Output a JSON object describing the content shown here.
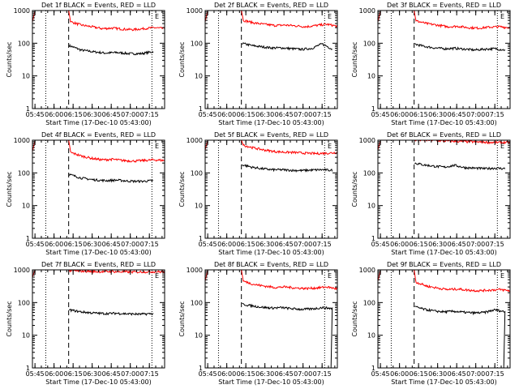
{
  "chart_data": [
    {
      "type": "line",
      "title": "Det 1f BLACK = Events, RED = LLD",
      "xlabel": "Start Time (17-Dec-10 05:43:00)",
      "ylabel": "Counts/sec",
      "yscale": "log",
      "ylim": [
        1,
        1000
      ],
      "xticks": [
        "05:45",
        "06:00",
        "06:15",
        "06:30",
        "06:45",
        "07:00",
        "07:15"
      ],
      "xlim_min": [
        0,
        100
      ],
      "yticks": [
        "1",
        "10",
        "100",
        "1000"
      ],
      "markers": [
        {
          "x": 10.5,
          "style": "dotted"
        },
        {
          "x": 28.5,
          "style": "dashed"
        },
        {
          "x": 94,
          "style": "dotted"
        }
      ],
      "corner_label": "E",
      "series": [
        {
          "name": "BLACK = Events",
          "color": "#000000",
          "start": 28.5,
          "end": 95,
          "base": [
            85,
            62,
            55,
            50,
            52,
            48,
            48,
            55
          ]
        },
        {
          "name": "RED = LLD",
          "color": "#ff0000",
          "start": 0,
          "end": 104,
          "spike": [
            [
              0,
              450
            ],
            [
              2,
              1000
            ],
            [
              28.5,
              1000
            ],
            [
              29.5,
              600
            ],
            [
              30,
              450
            ]
          ],
          "base": [
            450,
            360,
            320,
            280,
            290,
            270,
            260,
            280,
            300,
            280
          ]
        }
      ]
    },
    {
      "type": "line",
      "title": "Det 2f BLACK = Events, RED = LLD",
      "xlabel": "Start Time (17-Dec-10 05:43:00)",
      "ylabel": "Counts/sec",
      "yscale": "log",
      "ylim": [
        1,
        1000
      ],
      "xticks": [
        "05:45",
        "06:00",
        "06:15",
        "06:30",
        "06:45",
        "07:00",
        "07:15"
      ],
      "xlim_min": [
        0,
        100
      ],
      "yticks": [
        "1",
        "10",
        "100",
        "1000"
      ],
      "markers": [
        {
          "x": 10.5,
          "style": "dotted"
        },
        {
          "x": 28.5,
          "style": "dashed"
        },
        {
          "x": 94,
          "style": "dotted"
        }
      ],
      "corner_label": "E",
      "series": [
        {
          "name": "BLACK = Events",
          "color": "#000000",
          "start": 28.5,
          "end": 100,
          "base": [
            100,
            85,
            78,
            72,
            72,
            68,
            65,
            70,
            95,
            65
          ]
        },
        {
          "name": "RED = LLD",
          "color": "#ff0000",
          "start": 0,
          "end": 104,
          "spike": [
            [
              0,
              450
            ],
            [
              2,
              1000
            ],
            [
              28.5,
              1000
            ],
            [
              29.5,
              650
            ],
            [
              30,
              500
            ]
          ],
          "base": [
            500,
            420,
            380,
            350,
            360,
            340,
            320,
            350,
            380,
            330
          ]
        }
      ]
    },
    {
      "type": "line",
      "title": "Det 3f BLACK = Events, RED = LLD",
      "xlabel": "Start Time (17-Dec-10 05:43:00)",
      "ylabel": "Counts/sec",
      "yscale": "log",
      "ylim": [
        1,
        1000
      ],
      "xticks": [
        "05:45",
        "06:00",
        "06:15",
        "06:30",
        "06:45",
        "07:00",
        "07:15"
      ],
      "xlim_min": [
        0,
        100
      ],
      "yticks": [
        "1",
        "10",
        "100",
        "1000"
      ],
      "markers": [
        {
          "x": 10.5,
          "style": "dotted"
        },
        {
          "x": 28.5,
          "style": "dashed"
        },
        {
          "x": 94,
          "style": "dotted"
        }
      ],
      "corner_label": "E",
      "series": [
        {
          "name": "BLACK = Events",
          "color": "#000000",
          "start": 28.5,
          "end": 100,
          "base": [
            95,
            80,
            72,
            68,
            70,
            66,
            62,
            66,
            68,
            62
          ]
        },
        {
          "name": "RED = LLD",
          "color": "#ff0000",
          "start": 0,
          "end": 104,
          "spike": [
            [
              0,
              450
            ],
            [
              2,
              1000
            ],
            [
              28.5,
              1000
            ],
            [
              29.5,
              600
            ],
            [
              30,
              480
            ]
          ],
          "base": [
            480,
            400,
            360,
            320,
            330,
            300,
            290,
            310,
            320,
            300
          ]
        }
      ]
    },
    {
      "type": "line",
      "title": "Det 4f BLACK = Events, RED = LLD",
      "xlabel": "Start Time (17-Dec-10 05:43:00)",
      "ylabel": "Counts/sec",
      "yscale": "log",
      "ylim": [
        1,
        1000
      ],
      "xticks": [
        "05:45",
        "06:00",
        "06:15",
        "06:30",
        "06:45",
        "07:00",
        "07:15"
      ],
      "xlim_min": [
        0,
        100
      ],
      "yticks": [
        "1",
        "10",
        "100",
        "1000"
      ],
      "markers": [
        {
          "x": 10.5,
          "style": "dotted"
        },
        {
          "x": 28.5,
          "style": "dashed"
        },
        {
          "x": 94,
          "style": "dotted"
        }
      ],
      "corner_label": "E",
      "series": [
        {
          "name": "BLACK = Events",
          "color": "#000000",
          "start": 28.5,
          "end": 95,
          "base": [
            90,
            70,
            62,
            58,
            60,
            56,
            55,
            58
          ]
        },
        {
          "name": "RED = LLD",
          "color": "#ff0000",
          "start": 0,
          "end": 104,
          "spike": [
            [
              0,
              450
            ],
            [
              2,
              1000
            ],
            [
              28.5,
              1000
            ],
            [
              29.5,
              600
            ],
            [
              30,
              450
            ]
          ],
          "base": [
            420,
            330,
            280,
            250,
            260,
            240,
            230,
            240,
            250,
            240
          ]
        }
      ]
    },
    {
      "type": "line",
      "title": "Det 5f BLACK = Events, RED = LLD",
      "xlabel": "Start Time (17-Dec-10 05:43:00)",
      "ylabel": "Counts/sec",
      "yscale": "log",
      "ylim": [
        1,
        1000
      ],
      "xticks": [
        "05:45",
        "06:00",
        "06:15",
        "06:30",
        "06:45",
        "07:00",
        "07:15"
      ],
      "xlim_min": [
        0,
        100
      ],
      "yticks": [
        "1",
        "10",
        "100",
        "1000"
      ],
      "markers": [
        {
          "x": 10.5,
          "style": "dotted"
        },
        {
          "x": 28.5,
          "style": "dashed"
        },
        {
          "x": 94,
          "style": "dotted"
        }
      ],
      "corner_label": "E",
      "series": [
        {
          "name": "BLACK = Events",
          "color": "#000000",
          "start": 28.5,
          "end": 100,
          "base": [
            180,
            150,
            135,
            125,
            125,
            120,
            118,
            122,
            125,
            120
          ]
        },
        {
          "name": "RED = LLD",
          "color": "#ff0000",
          "start": 0,
          "end": 104,
          "spike": [
            [
              0,
              500
            ],
            [
              2,
              1000
            ],
            [
              28.5,
              1000
            ],
            [
              29.5,
              800
            ],
            [
              30,
              700
            ]
          ],
          "base": [
            700,
            580,
            500,
            450,
            430,
            420,
            400,
            390,
            400,
            420
          ]
        }
      ]
    },
    {
      "type": "line",
      "title": "Det 6f BLACK = Events, RED = LLD",
      "xlabel": "Start Time (17-Dec-10 05:43:00)",
      "ylabel": "Counts/sec",
      "yscale": "log",
      "ylim": [
        1,
        1000
      ],
      "xticks": [
        "05:45",
        "06:00",
        "06:15",
        "06:30",
        "06:45",
        "07:00",
        "07:15"
      ],
      "xlim_min": [
        0,
        100
      ],
      "yticks": [
        "1",
        "10",
        "100",
        "1000"
      ],
      "markers": [
        {
          "x": 10.5,
          "style": "dotted"
        },
        {
          "x": 28.5,
          "style": "dashed"
        },
        {
          "x": 94,
          "style": "dotted"
        }
      ],
      "corner_label": "E",
      "series": [
        {
          "name": "BLACK = Events",
          "color": "#000000",
          "start": 28.5,
          "end": 100,
          "base": [
            200,
            175,
            160,
            150,
            170,
            145,
            140,
            135,
            140,
            135
          ]
        },
        {
          "name": "RED = LLD",
          "color": "#ff0000",
          "start": 0,
          "end": 104,
          "spike": [
            [
              0,
              500
            ],
            [
              2,
              1000
            ],
            [
              28.5,
              1000
            ]
          ],
          "base": [
            1000,
            1000,
            980,
            950,
            920,
            900,
            880,
            860,
            850,
            860
          ]
        }
      ]
    },
    {
      "type": "line",
      "title": "Det 7f BLACK = Events, RED = LLD",
      "xlabel": "Start Time (17-Dec-10 05:43:00)",
      "ylabel": "Counts/sec",
      "yscale": "log",
      "ylim": [
        1,
        1000
      ],
      "xticks": [
        "05:45",
        "06:00",
        "06:15",
        "06:30",
        "06:45",
        "07:00",
        "07:15"
      ],
      "xlim_min": [
        0,
        100
      ],
      "yticks": [
        "1",
        "10",
        "100",
        "1000"
      ],
      "markers": [
        {
          "x": 10.5,
          "style": "dotted"
        },
        {
          "x": 28.5,
          "style": "dashed"
        },
        {
          "x": 94,
          "style": "dotted"
        }
      ],
      "corner_label": "E",
      "series": [
        {
          "name": "BLACK = Events",
          "color": "#000000",
          "start": 28.5,
          "end": 95,
          "base": [
            60,
            52,
            48,
            46,
            47,
            45,
            44,
            46
          ]
        },
        {
          "name": "RED = LLD",
          "color": "#ff0000",
          "start": 0,
          "end": 104,
          "spike": [
            [
              0,
              600
            ],
            [
              2,
              1000
            ],
            [
              28.5,
              1000
            ]
          ],
          "base": [
            950,
            920,
            900,
            880,
            890,
            870,
            860,
            870,
            880,
            870
          ]
        }
      ]
    },
    {
      "type": "line",
      "title": "Det 8f BLACK = Events, RED = LLD",
      "xlabel": "Start Time (17-Dec-10 05:43:00)",
      "ylabel": "Counts/sec",
      "yscale": "log",
      "ylim": [
        1,
        1000
      ],
      "xticks": [
        "05:45",
        "06:00",
        "06:15",
        "06:30",
        "06:45",
        "07:00",
        "07:15"
      ],
      "xlim_min": [
        0,
        100
      ],
      "yticks": [
        "1",
        "10",
        "100",
        "1000"
      ],
      "markers": [
        {
          "x": 10.5,
          "style": "dotted"
        },
        {
          "x": 28.5,
          "style": "dashed"
        },
        {
          "x": 94,
          "style": "dotted"
        }
      ],
      "corner_label": "E",
      "series": [
        {
          "name": "BLACK = Events",
          "color": "#000000",
          "start": 28.5,
          "end": 100,
          "drop_at": 99,
          "base": [
            90,
            80,
            72,
            68,
            70,
            65,
            62,
            64,
            70,
            66
          ]
        },
        {
          "name": "RED = LLD",
          "color": "#ff0000",
          "start": 0,
          "end": 104,
          "spike": [
            [
              0,
              450
            ],
            [
              2,
              1000
            ],
            [
              28.5,
              1000
            ],
            [
              29.5,
              600
            ],
            [
              30,
              450
            ]
          ],
          "base": [
            450,
            360,
            320,
            290,
            300,
            280,
            270,
            280,
            300,
            260
          ]
        }
      ]
    },
    {
      "type": "line",
      "title": "Det 9f BLACK = Events, RED = LLD",
      "xlabel": "Start Time (17-Dec-10 05:43:00)",
      "ylabel": "Counts/sec",
      "yscale": "log",
      "ylim": [
        1,
        1000
      ],
      "xticks": [
        "05:45",
        "06:00",
        "06:15",
        "06:30",
        "06:45",
        "07:00",
        "07:15"
      ],
      "xlim_min": [
        0,
        100
      ],
      "yticks": [
        "1",
        "10",
        "100",
        "1000"
      ],
      "markers": [
        {
          "x": 10.5,
          "style": "dotted"
        },
        {
          "x": 28.5,
          "style": "dashed"
        },
        {
          "x": 94,
          "style": "dotted"
        }
      ],
      "corner_label": "E",
      "series": [
        {
          "name": "BLACK = Events",
          "color": "#000000",
          "start": 28.5,
          "end": 100,
          "drop_at": 99,
          "base": [
            75,
            62,
            55,
            52,
            54,
            50,
            48,
            50,
            60,
            52
          ]
        },
        {
          "name": "RED = LLD",
          "color": "#ff0000",
          "start": 0,
          "end": 104,
          "spike": [
            [
              0,
              450
            ],
            [
              2,
              1000
            ],
            [
              28.5,
              1000
            ],
            [
              29.5,
              550
            ],
            [
              30,
              420
            ]
          ],
          "base": [
            420,
            320,
            280,
            250,
            260,
            240,
            230,
            240,
            250,
            230
          ]
        }
      ]
    }
  ]
}
